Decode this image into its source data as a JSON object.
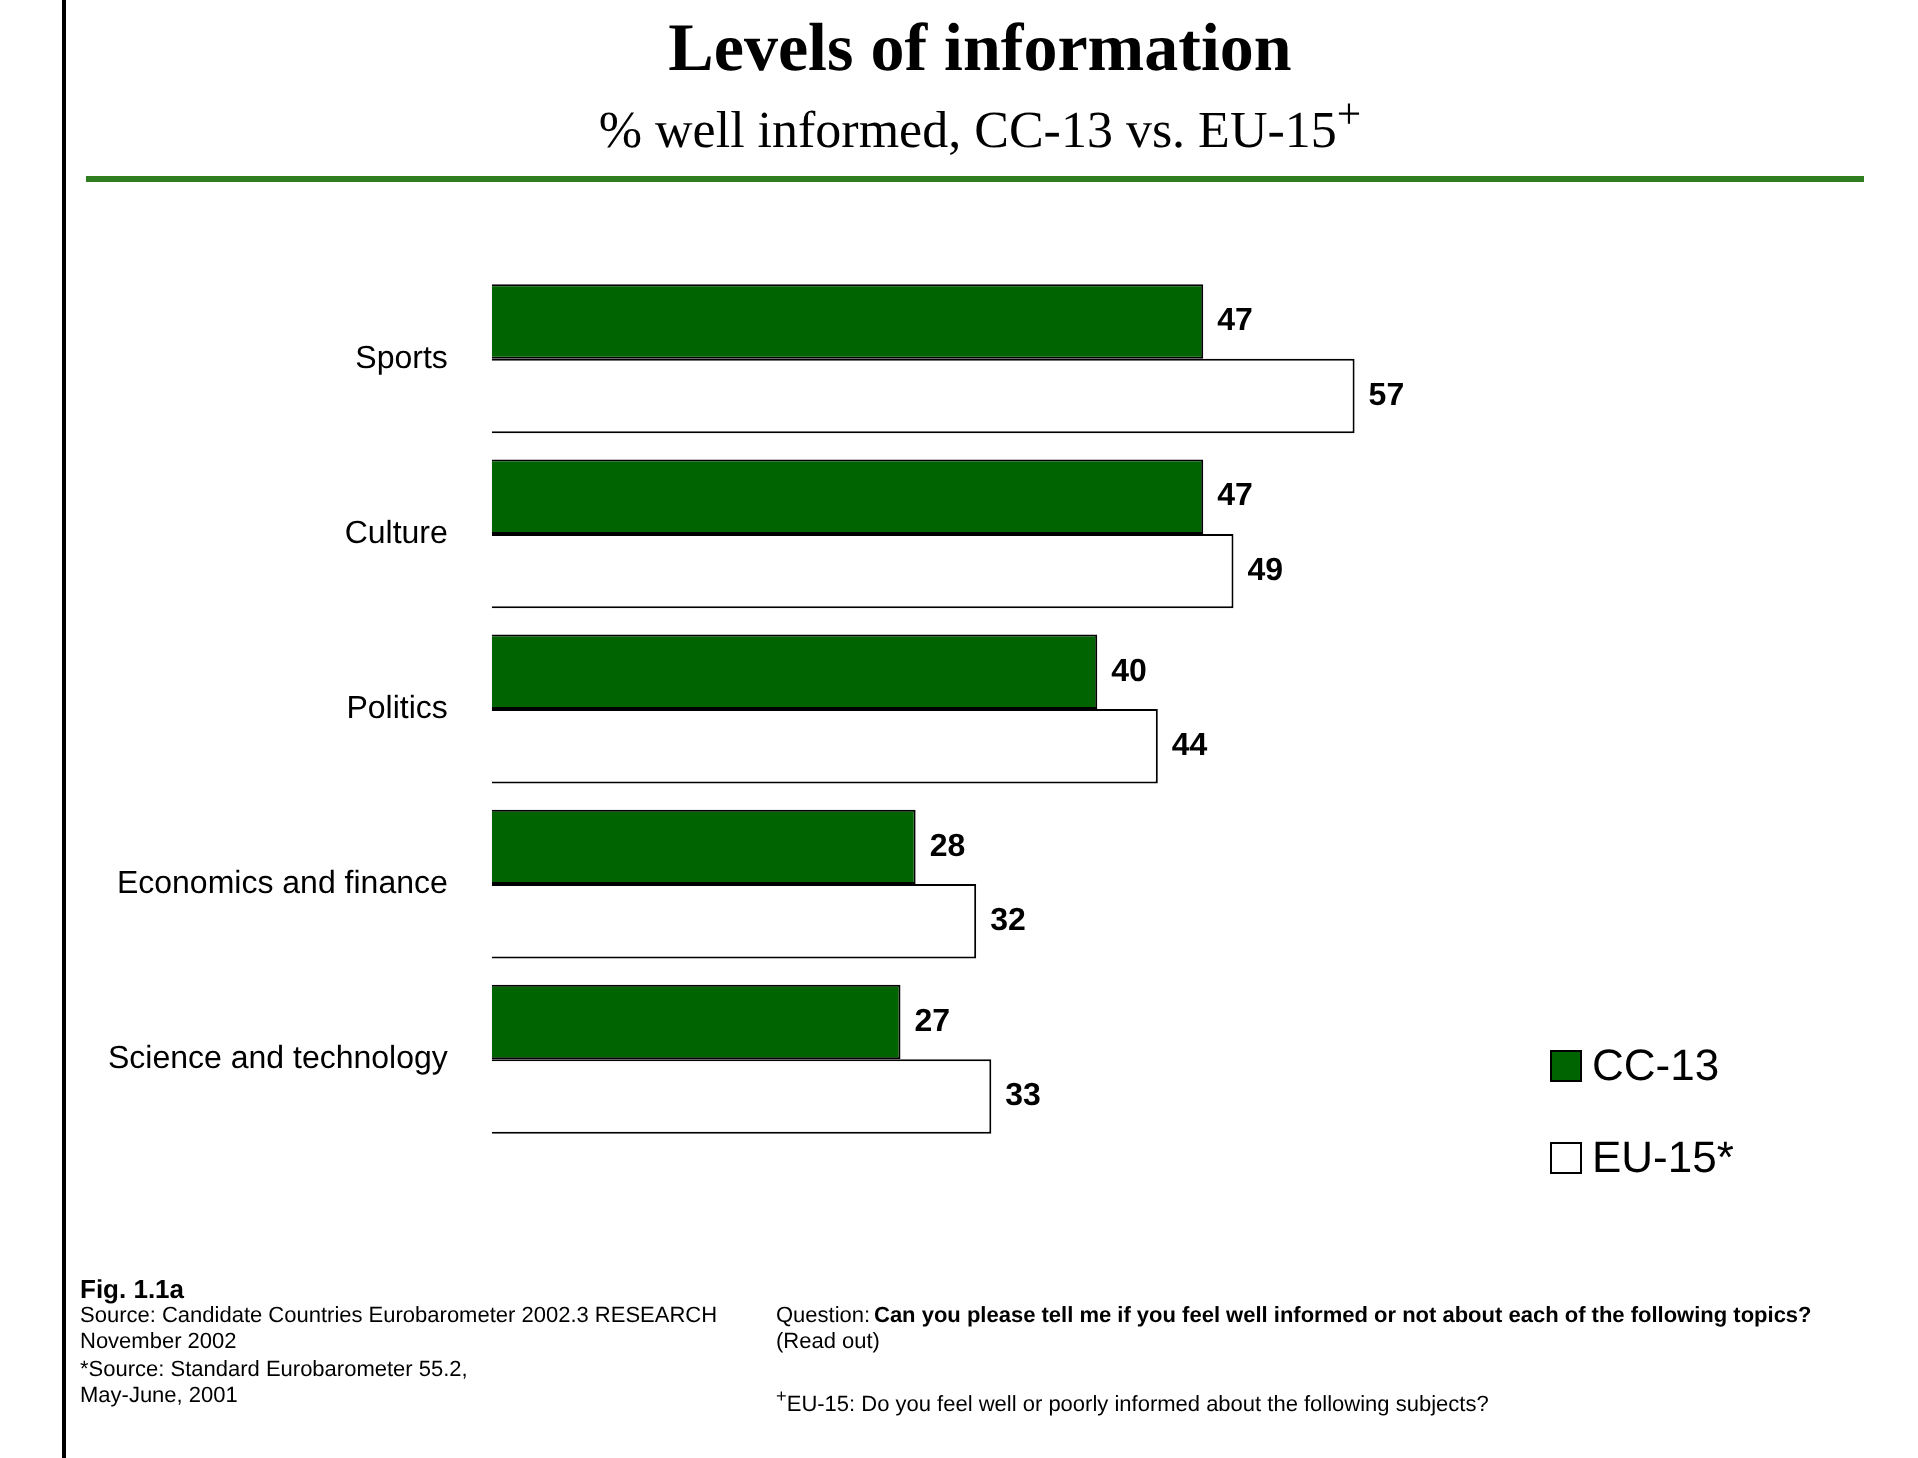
{
  "chart_data": {
    "type": "bar",
    "orientation": "horizontal",
    "title": "Levels of information",
    "subtitle": "% well informed, CC-13 vs. EU-15$^{+}$",
    "categories": [
      "Sports",
      "Culture",
      "Politics",
      "Economics and finance",
      "Science and technology"
    ],
    "series": [
      {
        "name": "CC-13",
        "color": "#006400",
        "values": [
          47,
          47,
          40,
          28,
          27
        ]
      },
      {
        "name": "EU-15*",
        "color": "#ffffff",
        "values": [
          57,
          49,
          44,
          32,
          33
        ]
      }
    ],
    "tick_labels": "y",
    "data_labels": true,
    "legend": "bottom right",
    "annotations": [
      "Fig. 1.1a",
      "Source: Candidate Countries Eurobarometer 2002.3 RESEARCH",
      "November  2002",
      "*Source: Standard Eurobarometer 55.2,",
      "May-June, 2001",
      "Question:",
      "Can you please tell me if you feel well informed or not  about each of the following topics?",
      "(Read out)",
      "$^{+}$EU-15: Do you feel well or poorly informed about the following subjects?"
    ]
  }
}
